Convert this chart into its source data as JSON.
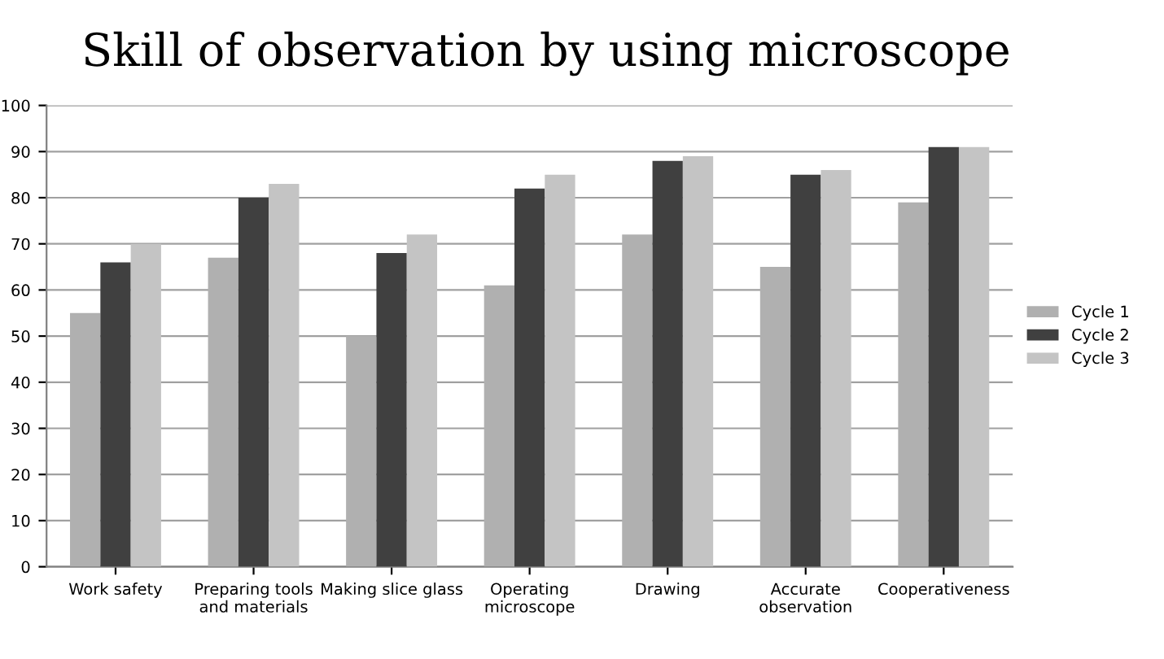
{
  "chart_data": {
    "type": "bar",
    "title": "Skill of observation by using microscope",
    "categories": [
      "Work safety",
      "Preparing tools\nand materials",
      "Making slice glass",
      "Operating\nmicroscope",
      "Drawing",
      "Accurate\nobservation",
      "Cooperativeness"
    ],
    "series": [
      {
        "name": "Cycle 1",
        "color": "#b0b0b0",
        "values": [
          55,
          67,
          50,
          61,
          72,
          65,
          79
        ]
      },
      {
        "name": "Cycle 2",
        "color": "#404040",
        "values": [
          66,
          80,
          68,
          82,
          88,
          85,
          91
        ]
      },
      {
        "name": "Cycle 3",
        "color": "#c4c4c4",
        "values": [
          70,
          83,
          72,
          85,
          89,
          86,
          91
        ]
      }
    ],
    "ylim": [
      0,
      100
    ],
    "yticks": [
      0,
      10,
      20,
      30,
      40,
      50,
      60,
      70,
      80,
      90,
      100
    ],
    "grid": "y",
    "legend": "right"
  }
}
